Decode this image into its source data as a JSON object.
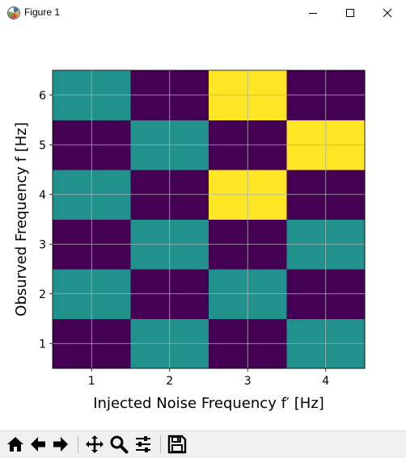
{
  "window": {
    "title": "Figure 1",
    "app_icon": "matplotlib-icon",
    "controls": [
      "minimize-icon",
      "maximize-icon",
      "close-icon"
    ]
  },
  "toolbar": {
    "buttons": [
      {
        "name": "home",
        "icon": "home-icon"
      },
      {
        "name": "back",
        "icon": "arrow-left-icon"
      },
      {
        "name": "forward",
        "icon": "arrow-right-icon"
      },
      {
        "name": "pan",
        "icon": "move-icon"
      },
      {
        "name": "zoom",
        "icon": "zoom-icon"
      },
      {
        "name": "configure-subplots",
        "icon": "sliders-icon"
      },
      {
        "name": "save",
        "icon": "save-icon"
      }
    ]
  },
  "chart_data": {
    "type": "heatmap",
    "xlabel": "Injected Noise Frequency f′ [Hz]",
    "ylabel": "Obsurved Frequency f [Hz]",
    "x": [
      1,
      2,
      3,
      4
    ],
    "y": [
      1,
      2,
      3,
      4,
      5,
      6
    ],
    "xticks": [
      "1",
      "2",
      "3",
      "4"
    ],
    "yticks": [
      "1",
      "2",
      "3",
      "4",
      "5",
      "6"
    ],
    "values": [
      [
        0,
        1,
        0,
        1
      ],
      [
        1,
        0,
        1,
        0
      ],
      [
        0,
        1,
        0,
        1
      ],
      [
        1,
        0,
        2,
        0
      ],
      [
        0,
        1,
        0,
        2
      ],
      [
        1,
        0,
        2,
        0
      ]
    ],
    "value_note": "rows listed from y=1 to y=6; 0=dark purple, 1=teal, 2=yellow",
    "colormap": "viridis",
    "colors": {
      "0": "#440154",
      "1": "#21918c",
      "2": "#fde725"
    },
    "grid": true,
    "grid_color": "#b0b0b0"
  }
}
